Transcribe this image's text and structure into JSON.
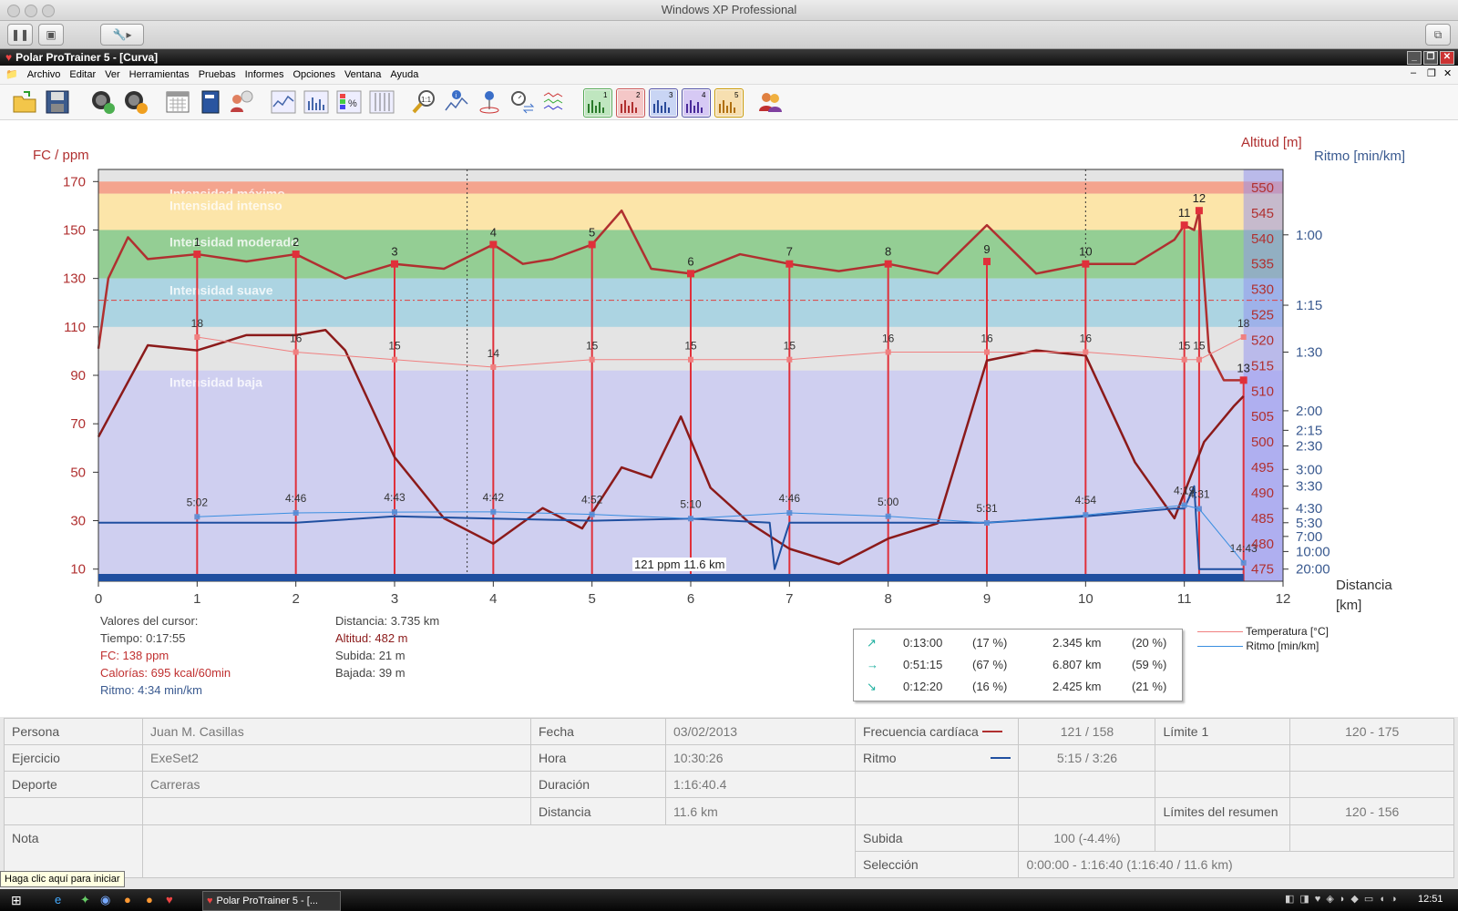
{
  "host": {
    "title": "Windows XP Professional"
  },
  "app": {
    "title": "Polar ProTrainer 5 - [Curva]"
  },
  "menu": [
    "Archivo",
    "Editar",
    "Ver",
    "Herramientas",
    "Pruebas",
    "Informes",
    "Opciones",
    "Ventana",
    "Ayuda"
  ],
  "colors": {
    "hr": "#b03030",
    "pace": "#1f4fa0",
    "altitude": "#8b1a1a",
    "temp": "#f08080",
    "lap": "#e0303a",
    "max": "#f4a089",
    "intense": "#fde5a5",
    "moderate": "#8fcc8f",
    "light": "#a9d3e2",
    "low": "#c8c8f4"
  },
  "chart": {
    "left_axis_title": "FC / ppm",
    "right_axis_title_alt": "Altitud [m]",
    "right_axis_title_pace": "Ritmo [min/km]",
    "x_axis_title": "Distancia",
    "x_axis_unit": "[km]",
    "zones": [
      "Intensidad máximo",
      "Intensidad intenso",
      "Intensidad moderado",
      "Intensidad suave",
      "Intensidad baja"
    ],
    "status_label": "121 ppm 11.6 km"
  },
  "chart_data": {
    "type": "line",
    "xlabel": "Distancia [km]",
    "ylabel": "FC / ppm",
    "xlim": [
      0,
      12
    ],
    "ylim": [
      5,
      175
    ],
    "x_ticks": [
      "0",
      "1",
      "2",
      "3",
      "4",
      "5",
      "6",
      "7",
      "8",
      "9",
      "10",
      "11",
      "12"
    ],
    "hr_ticks": [
      "170",
      "150",
      "130",
      "110",
      "90",
      "70",
      "50",
      "30",
      "10"
    ],
    "alt_ticks": [
      "550",
      "545",
      "540",
      "535",
      "530",
      "525",
      "520",
      "515",
      "510",
      "505",
      "500",
      "495",
      "490",
      "485",
      "480",
      "475"
    ],
    "pace_ticks": [
      "1:00",
      "1:15",
      "1:30",
      "2:00",
      "2:15",
      "2:30",
      "3:00",
      "3:30",
      "4:30",
      "5:30",
      "7:00",
      "10:00",
      "20:00"
    ],
    "zone_bounds_ppm": [
      [
        165,
        170
      ],
      [
        150,
        165
      ],
      [
        130,
        150
      ],
      [
        110,
        130
      ],
      [
        0,
        92
      ]
    ],
    "laps": [
      {
        "n": "1",
        "km": 1.0,
        "hr": 140,
        "temp": "18",
        "pace": "5:02"
      },
      {
        "n": "2",
        "km": 2.0,
        "hr": 140,
        "temp": "16",
        "pace": "4:46"
      },
      {
        "n": "3",
        "km": 3.0,
        "hr": 136,
        "temp": "15",
        "pace": "4:43"
      },
      {
        "n": "4",
        "km": 4.0,
        "hr": 144,
        "temp": "14",
        "pace": "4:42"
      },
      {
        "n": "5",
        "km": 5.0,
        "hr": 144,
        "temp": "15",
        "pace": "4:52"
      },
      {
        "n": "6",
        "km": 6.0,
        "hr": 132,
        "temp": "15",
        "pace": "5:10"
      },
      {
        "n": "7",
        "km": 7.0,
        "hr": 136,
        "temp": "15",
        "pace": "4:46"
      },
      {
        "n": "8",
        "km": 8.0,
        "hr": 136,
        "temp": "16",
        "pace": "5:00"
      },
      {
        "n": "9",
        "km": 9.0,
        "hr": 137,
        "temp": "16",
        "pace": "5:31"
      },
      {
        "n": "10",
        "km": 10.0,
        "hr": 136,
        "temp": "16",
        "pace": "4:54"
      },
      {
        "n": "11",
        "km": 11.0,
        "hr": 152,
        "temp": "15",
        "pace": "4:19"
      },
      {
        "n": "12",
        "km": 11.15,
        "hr": 158,
        "temp": "15",
        "pace": "4:31"
      },
      {
        "n": "13",
        "km": 11.6,
        "hr": 88,
        "temp": "18",
        "pace": "14:43"
      }
    ],
    "series": [
      {
        "name": "Frecuencia cardíaca",
        "x": [
          0,
          0.1,
          0.3,
          0.5,
          1.0,
          1.5,
          2.0,
          2.5,
          3.0,
          3.5,
          4.0,
          4.3,
          4.6,
          5.0,
          5.3,
          5.6,
          6.0,
          6.5,
          7.0,
          7.5,
          8.0,
          8.5,
          9.0,
          9.5,
          10.0,
          10.5,
          10.9,
          11.0,
          11.1,
          11.15,
          11.25,
          11.4,
          11.6
        ],
        "y": [
          101,
          130,
          147,
          138,
          140,
          137,
          140,
          130,
          136,
          134,
          144,
          136,
          138,
          144,
          158,
          134,
          132,
          140,
          136,
          133,
          136,
          132,
          152,
          132,
          136,
          136,
          146,
          152,
          150,
          158,
          100,
          88,
          88
        ]
      },
      {
        "name": "Altitud [m]",
        "x": [
          0,
          0.5,
          1.0,
          1.5,
          2.0,
          2.3,
          2.5,
          3.0,
          3.5,
          4.0,
          4.5,
          4.9,
          5.3,
          5.6,
          5.9,
          6.2,
          6.6,
          7.0,
          7.5,
          8.0,
          8.5,
          9.0,
          9.5,
          10.0,
          10.5,
          10.9,
          11.2,
          11.5,
          11.6
        ],
        "y": [
          501,
          519,
          518,
          521,
          521,
          522,
          518,
          497,
          485,
          480,
          487,
          483,
          495,
          493,
          505,
          491,
          484,
          479,
          476,
          481,
          484,
          516,
          518,
          517,
          496,
          485,
          500,
          507,
          509
        ]
      },
      {
        "name": "Ritmo [min/km]",
        "x": [
          0,
          0.6,
          1.0,
          2.0,
          3.0,
          4.0,
          5.0,
          6.0,
          6.8,
          6.85,
          7.0,
          8.0,
          9.0,
          10.0,
          10.9,
          11.0,
          11.1,
          11.15,
          11.2,
          11.6
        ],
        "y": [
          "5:30",
          "5:30",
          "5:30",
          "5:30",
          "5:00",
          "5:10",
          "5:20",
          "5:10",
          "5:30",
          "20:00",
          "5:30",
          "5:30",
          "5:30",
          "5:00",
          "4:30",
          "4:30",
          "3:30",
          "20:00",
          "20:00",
          "20:00"
        ]
      }
    ]
  },
  "cursor": {
    "header": "Valores del cursor:",
    "tiempo": "Tiempo: 0:17:55",
    "fc": "FC: 138 ppm",
    "calorias": "Calorías: 695 kcal/60min",
    "ritmo": "Ritmo: 4:34 min/km",
    "distancia": "Distancia: 3.735 km",
    "altitud": "Altitud: 482 m",
    "subida": "Subida: 21 m",
    "bajada": "Bajada: 39 m"
  },
  "summary_box": [
    {
      "icon": "↗",
      "time": "0:13:00",
      "pct_time": "(17 %)",
      "dist": "2.345 km",
      "pct_dist": "(20 %)"
    },
    {
      "icon": "→",
      "time": "0:51:15",
      "pct_time": "(67 %)",
      "dist": "6.807 km",
      "pct_dist": "(59 %)"
    },
    {
      "icon": "↘",
      "time": "0:12:20",
      "pct_time": "(16 %)",
      "dist": "2.425 km",
      "pct_dist": "(21 %)"
    }
  ],
  "legend": {
    "temp": "Temperatura [°C]",
    "pace": "Ritmo [min/km]"
  },
  "info": {
    "persona_label": "Persona",
    "persona": "Juan M. Casillas",
    "ejercicio_label": "Ejercicio",
    "ejercicio": "ExeSet2",
    "deporte_label": "Deporte",
    "deporte": "Carreras",
    "nota_label": "Nota",
    "fecha_label": "Fecha",
    "fecha": "03/02/2013",
    "hora_label": "Hora",
    "hora": "10:30:26",
    "duracion_label": "Duración",
    "duracion": "1:16:40.4",
    "distancia_label": "Distancia",
    "distancia": "11.6 km",
    "fc_label": "Frecuencia cardíaca",
    "fc": "121 / 158",
    "ritmo_label": "Ritmo",
    "ritmo": "5:15 / 3:26",
    "subida_label": "Subida",
    "subida": "100 (-4.4%)",
    "seleccion_label": "Selección",
    "seleccion": "0:00:00 - 1:16:40 (1:16:40 / 11.6 km)",
    "limite1_label": "Límite 1",
    "limite1": "120 - 175",
    "limites_label": "Límites del resumen",
    "limites": "120 - 156"
  },
  "taskbar": {
    "tooltip": "Haga clic aquí para iniciar",
    "task": "Polar ProTrainer 5 - [...",
    "clock": "12:51"
  }
}
